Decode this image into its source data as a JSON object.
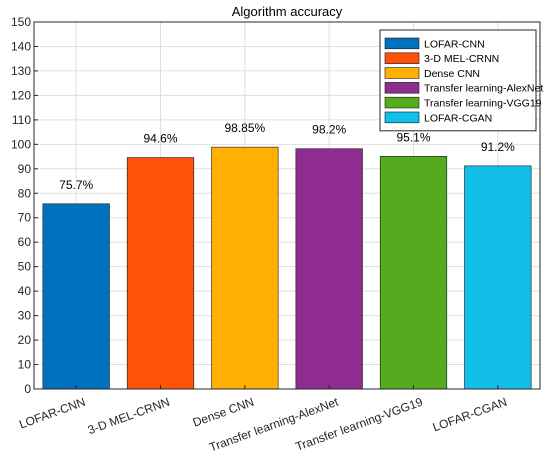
{
  "chart_data": {
    "type": "bar",
    "title": "Algorithm accuracy",
    "xlabel": "",
    "ylabel": "",
    "ylim": [
      0,
      150
    ],
    "yticks": [
      0,
      10,
      20,
      30,
      40,
      50,
      60,
      70,
      80,
      90,
      100,
      110,
      120,
      130,
      140,
      150
    ],
    "grid": true,
    "legend_position": "top-right",
    "categories": [
      "LOFAR-CNN",
      "3-D MEL-CRNN",
      "Dense CNN",
      "Transfer learning-AlexNet",
      "Transfer learning-VGG19",
      "LOFAR-CGAN"
    ],
    "values": [
      75.7,
      94.6,
      98.85,
      98.2,
      95.1,
      91.2
    ],
    "value_labels": [
      "75.7%",
      "94.6%",
      "98.85%",
      "98.2%",
      "95.1%",
      "91.2%"
    ],
    "colors": [
      "#0072BD",
      "#FF5107",
      "#FFB000",
      "#8E2C8F",
      "#55AB1E",
      "#11BFEA"
    ],
    "legend": [
      "LOFAR-CNN",
      "3-D MEL-CRNN",
      "Dense CNN",
      "Transfer learning-AlexNet",
      "Transfer learning-VGG19",
      "LOFAR-CGAN"
    ]
  }
}
